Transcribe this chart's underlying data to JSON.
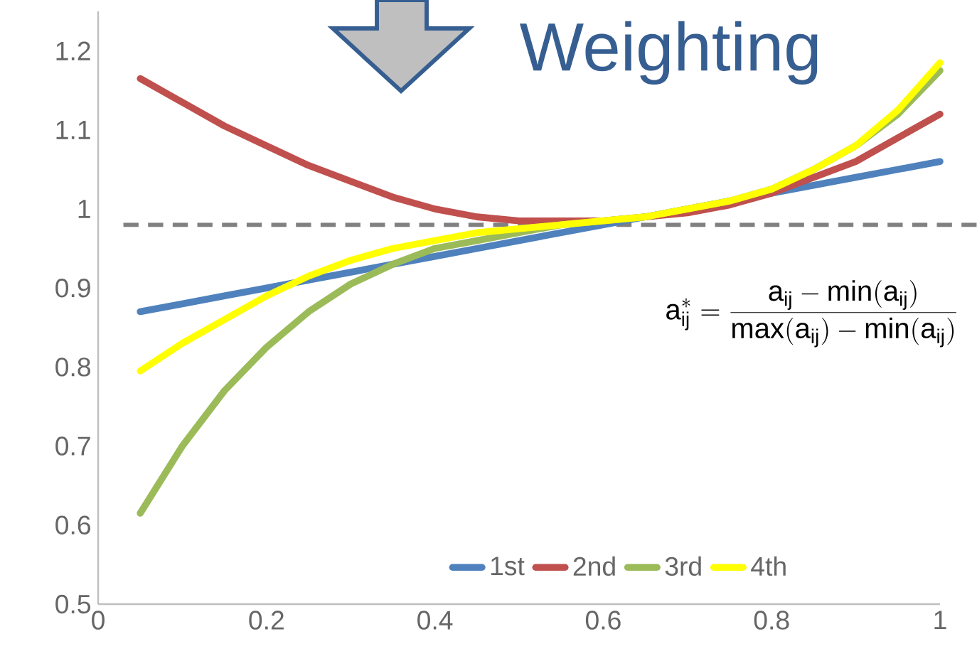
{
  "chart_data": {
    "type": "line",
    "x": [
      0.05,
      0.1,
      0.15,
      0.2,
      0.25,
      0.3,
      0.35,
      0.4,
      0.45,
      0.5,
      0.55,
      0.6,
      0.65,
      0.7,
      0.75,
      0.8,
      0.85,
      0.9,
      0.95,
      1
    ],
    "series": [
      {
        "name": "1st",
        "color": "#4f81bd",
        "values": [
          0.87,
          0.88,
          0.89,
          0.9,
          0.91,
          0.92,
          0.93,
          0.94,
          0.95,
          0.96,
          0.97,
          0.98,
          0.99,
          null,
          null,
          1.02,
          1.03,
          1.04,
          1.05,
          1.06
        ]
      },
      {
        "name": "2nd",
        "color": "#c0504d",
        "values": [
          1.165,
          1.135,
          1.105,
          1.08,
          1.055,
          1.035,
          1.015,
          1.0,
          0.99,
          0.985,
          0.985,
          0.985,
          0.99,
          0.995,
          1.005,
          1.02,
          1.04,
          1.06,
          1.09,
          1.12
        ]
      },
      {
        "name": "3rd",
        "color": "#9bbb59",
        "values": [
          0.615,
          0.7,
          0.77,
          0.825,
          0.87,
          0.905,
          0.93,
          0.95,
          0.96,
          0.97,
          0.98,
          0.985,
          0.99,
          1.0,
          1.01,
          1.025,
          1.05,
          1.08,
          1.12,
          1.175
        ]
      },
      {
        "name": "4th",
        "color": "#ffff00",
        "values": [
          0.795,
          0.83,
          0.86,
          0.89,
          0.915,
          0.935,
          0.95,
          0.96,
          0.97,
          0.975,
          0.98,
          0.985,
          0.99,
          1.0,
          1.01,
          1.025,
          1.05,
          1.08,
          1.125,
          1.185
        ]
      }
    ],
    "xlim": [
      0,
      1
    ],
    "ylim": [
      0.5,
      1.25
    ],
    "xticks": [
      0,
      0.2,
      0.4,
      0.6,
      0.8,
      1
    ],
    "yticks": [
      0.5,
      0.6,
      0.7,
      0.8,
      0.9,
      1,
      1.1,
      1.2
    ],
    "ref_lines": [
      {
        "axis": "y",
        "value": 0.98,
        "color": "#808080",
        "line_style": "dashed"
      }
    ],
    "legend": "bottom",
    "annotations": [
      "Weighting",
      "\\mathrm{a}^{*}_{\\mathrm{ij}} = \\frac{\\mathrm{a}_{\\mathrm{ij}} - \\min(\\mathrm{a}_{\\mathrm{ij}})}{\\max(\\mathrm{a}_{\\mathrm{ij}}) - \\min(\\mathrm{a}_{\\mathrm{ij}})}"
    ]
  }
}
